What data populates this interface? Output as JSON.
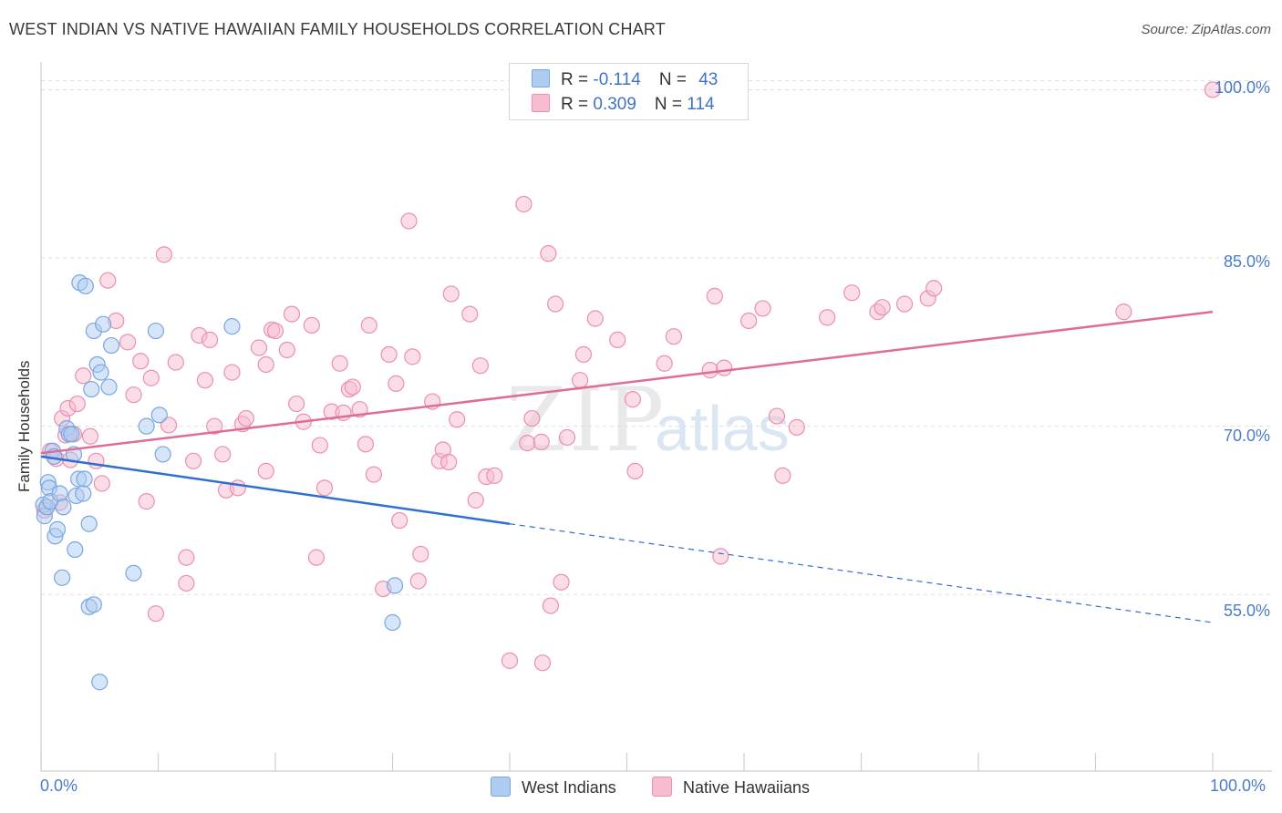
{
  "header": {
    "title": "WEST INDIAN VS NATIVE HAWAIIAN FAMILY HOUSEHOLDS CORRELATION CHART",
    "source": "Source: ZipAtlas.com"
  },
  "watermark": {
    "zip": "ZIP",
    "atlas": "atlas"
  },
  "legend": {
    "west_indian": {
      "r_label": "R = ",
      "r_value": "-0.114",
      "n_label": "N = ",
      "n_value": "43"
    },
    "native_hawaiian": {
      "r_label": "R = ",
      "r_value": "0.309",
      "n_label": "N = ",
      "n_value": "114"
    }
  },
  "colors": {
    "west_indian_fill": "#aecbf0",
    "west_indian_stroke": "#7aa6e0",
    "west_indian_line": "#2f6fcf",
    "native_hawaiian_fill": "#f7bcd0",
    "native_hawaiian_stroke": "#eb8fb0",
    "native_hawaiian_line": "#e06b97",
    "grid": "#dddddd",
    "tick_label": "#4a7cc7"
  },
  "chart_data": {
    "type": "scatter",
    "title": "WEST INDIAN VS NATIVE HAWAIIAN FAMILY HOUSEHOLDS CORRELATION CHART",
    "xlabel": "",
    "ylabel": "Family Households",
    "x_tick_labels": [
      "0.0%",
      "100.0%"
    ],
    "y_tick_labels": [
      "55.0%",
      "70.0%",
      "85.0%",
      "100.0%"
    ],
    "y_ticks": [
      55,
      70,
      85,
      100
    ],
    "xlim": [
      0,
      100
    ],
    "ylim": [
      39.5,
      101.5
    ],
    "grid": true,
    "legend_position": "bottom-center",
    "series": [
      {
        "name": "West Indians",
        "r": -0.114,
        "n": 43,
        "trend": {
          "x0": 0,
          "y0": 67.3,
          "x1": 40,
          "y1": 61.3,
          "dashed_to_x": 100,
          "dashed_to_y": 52.5
        },
        "points": [
          [
            0.2,
            63.0
          ],
          [
            0.3,
            62.0
          ],
          [
            0.5,
            62.8
          ],
          [
            0.6,
            65.0
          ],
          [
            0.7,
            64.5
          ],
          [
            0.8,
            63.3
          ],
          [
            1.0,
            67.8
          ],
          [
            1.1,
            67.3
          ],
          [
            1.2,
            60.2
          ],
          [
            1.4,
            60.8
          ],
          [
            1.6,
            64.0
          ],
          [
            1.8,
            56.5
          ],
          [
            1.9,
            62.8
          ],
          [
            2.2,
            69.8
          ],
          [
            2.4,
            69.3
          ],
          [
            2.6,
            69.3
          ],
          [
            2.8,
            67.5
          ],
          [
            2.9,
            59.0
          ],
          [
            3.0,
            63.8
          ],
          [
            3.2,
            65.3
          ],
          [
            3.3,
            82.8
          ],
          [
            3.6,
            64.0
          ],
          [
            3.7,
            65.3
          ],
          [
            3.8,
            82.5
          ],
          [
            4.1,
            61.3
          ],
          [
            4.1,
            53.9
          ],
          [
            4.3,
            73.3
          ],
          [
            4.5,
            54.1
          ],
          [
            4.5,
            78.5
          ],
          [
            4.8,
            75.5
          ],
          [
            5.0,
            47.2
          ],
          [
            5.1,
            74.8
          ],
          [
            5.3,
            79.1
          ],
          [
            5.8,
            73.5
          ],
          [
            6.0,
            77.2
          ],
          [
            7.9,
            56.9
          ],
          [
            9.0,
            70.0
          ],
          [
            9.8,
            78.5
          ],
          [
            10.1,
            71.0
          ],
          [
            10.4,
            67.5
          ],
          [
            16.3,
            78.9
          ],
          [
            30.0,
            52.5
          ],
          [
            30.2,
            55.8
          ]
        ]
      },
      {
        "name": "Native Hawaiians",
        "r": 0.309,
        "n": 114,
        "trend": {
          "x0": 0,
          "y0": 67.6,
          "x1": 100,
          "y1": 80.2
        },
        "points": [
          [
            0.3,
            62.5
          ],
          [
            0.8,
            67.8
          ],
          [
            1.3,
            67.1
          ],
          [
            1.6,
            63.2
          ],
          [
            1.8,
            70.7
          ],
          [
            2.1,
            69.2
          ],
          [
            2.3,
            71.6
          ],
          [
            2.5,
            67.0
          ],
          [
            2.8,
            69.3
          ],
          [
            3.1,
            72.0
          ],
          [
            3.6,
            74.5
          ],
          [
            4.2,
            69.1
          ],
          [
            4.7,
            66.9
          ],
          [
            5.2,
            64.9
          ],
          [
            5.7,
            83.0
          ],
          [
            6.4,
            79.4
          ],
          [
            7.4,
            77.5
          ],
          [
            7.9,
            72.8
          ],
          [
            8.5,
            75.8
          ],
          [
            9.0,
            63.3
          ],
          [
            9.4,
            74.3
          ],
          [
            9.8,
            53.3
          ],
          [
            10.5,
            85.3
          ],
          [
            10.9,
            70.1
          ],
          [
            11.5,
            75.7
          ],
          [
            12.4,
            58.3
          ],
          [
            12.4,
            56.0
          ],
          [
            13.0,
            66.9
          ],
          [
            13.5,
            78.1
          ],
          [
            14.0,
            74.1
          ],
          [
            14.4,
            77.7
          ],
          [
            14.8,
            70.0
          ],
          [
            15.5,
            67.5
          ],
          [
            15.8,
            64.3
          ],
          [
            16.3,
            74.8
          ],
          [
            16.8,
            64.5
          ],
          [
            17.2,
            70.2
          ],
          [
            17.5,
            70.7
          ],
          [
            18.6,
            77.0
          ],
          [
            19.2,
            66.0
          ],
          [
            19.2,
            75.5
          ],
          [
            19.7,
            78.6
          ],
          [
            20.0,
            78.5
          ],
          [
            21.0,
            76.8
          ],
          [
            21.4,
            80.0
          ],
          [
            21.8,
            72.0
          ],
          [
            22.4,
            70.4
          ],
          [
            23.1,
            79.0
          ],
          [
            23.5,
            58.3
          ],
          [
            23.8,
            68.3
          ],
          [
            24.2,
            64.5
          ],
          [
            24.8,
            71.3
          ],
          [
            25.5,
            75.6
          ],
          [
            25.8,
            71.2
          ],
          [
            26.3,
            73.3
          ],
          [
            26.6,
            73.5
          ],
          [
            27.2,
            71.5
          ],
          [
            27.7,
            68.4
          ],
          [
            28.0,
            79.0
          ],
          [
            28.4,
            65.7
          ],
          [
            29.2,
            55.5
          ],
          [
            29.7,
            76.4
          ],
          [
            30.3,
            73.8
          ],
          [
            30.6,
            61.6
          ],
          [
            31.4,
            88.3
          ],
          [
            31.7,
            76.2
          ],
          [
            32.2,
            56.2
          ],
          [
            32.4,
            58.6
          ],
          [
            33.4,
            72.2
          ],
          [
            34.0,
            66.9
          ],
          [
            34.3,
            67.9
          ],
          [
            34.8,
            66.8
          ],
          [
            35.0,
            81.8
          ],
          [
            35.5,
            70.6
          ],
          [
            36.6,
            80.0
          ],
          [
            37.1,
            63.4
          ],
          [
            37.5,
            75.4
          ],
          [
            38.0,
            65.5
          ],
          [
            38.7,
            65.6
          ],
          [
            40.0,
            49.1
          ],
          [
            41.2,
            89.8
          ],
          [
            41.5,
            68.5
          ],
          [
            41.9,
            70.7
          ],
          [
            42.7,
            68.6
          ],
          [
            42.8,
            48.9
          ],
          [
            43.3,
            85.4
          ],
          [
            43.5,
            54.0
          ],
          [
            43.9,
            80.9
          ],
          [
            44.4,
            56.1
          ],
          [
            44.9,
            69.0
          ],
          [
            46.0,
            74.1
          ],
          [
            46.3,
            76.4
          ],
          [
            47.3,
            79.6
          ],
          [
            49.2,
            77.7
          ],
          [
            50.5,
            72.4
          ],
          [
            50.7,
            66.0
          ],
          [
            53.2,
            75.6
          ],
          [
            54.0,
            78.0
          ],
          [
            57.1,
            75.0
          ],
          [
            57.5,
            81.6
          ],
          [
            58.0,
            58.4
          ],
          [
            58.3,
            75.2
          ],
          [
            60.4,
            79.4
          ],
          [
            61.6,
            80.5
          ],
          [
            62.8,
            70.9
          ],
          [
            63.3,
            65.6
          ],
          [
            64.5,
            69.9
          ],
          [
            67.1,
            79.7
          ],
          [
            69.2,
            81.9
          ],
          [
            71.4,
            80.2
          ],
          [
            71.8,
            80.6
          ],
          [
            73.7,
            80.9
          ],
          [
            75.7,
            81.4
          ],
          [
            76.2,
            82.3
          ],
          [
            92.4,
            80.2
          ],
          [
            100.0,
            100.0
          ]
        ]
      }
    ]
  }
}
